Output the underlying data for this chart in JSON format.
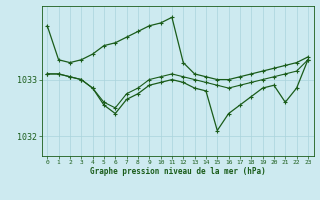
{
  "title": "Graphe pression niveau de la mer (hPa)",
  "background_color": "#cdeaf0",
  "grid_color": "#aad4dc",
  "line_color_dark": "#1a5c1a",
  "line_color_med": "#2d6e2d",
  "x_labels": [
    "0",
    "1",
    "2",
    "3",
    "4",
    "5",
    "6",
    "7",
    "8",
    "9",
    "10",
    "11",
    "12",
    "13",
    "14",
    "15",
    "16",
    "17",
    "18",
    "19",
    "20",
    "21",
    "22",
    "23"
  ],
  "yticks": [
    1032,
    1033
  ],
  "ylim": [
    1031.65,
    1034.3
  ],
  "xlim": [
    -0.5,
    23.5
  ],
  "series1_y": [
    1033.95,
    1033.35,
    1033.3,
    1033.35,
    1033.45,
    1033.6,
    1033.65,
    1033.75,
    1033.85,
    1033.95,
    1034.0,
    1034.1,
    1033.3,
    1033.1,
    1033.05,
    1033.0,
    1033.0,
    1033.05,
    1033.1,
    1033.15,
    1033.2,
    1033.25,
    1033.3,
    1033.4
  ],
  "series2_y": [
    1033.1,
    1033.1,
    1033.05,
    1033.0,
    1032.85,
    1032.6,
    1032.5,
    1032.75,
    1032.85,
    1033.0,
    1033.05,
    1033.1,
    1033.05,
    1033.0,
    1032.95,
    1032.9,
    1032.85,
    1032.9,
    1032.95,
    1033.0,
    1033.05,
    1033.1,
    1033.15,
    1033.35
  ],
  "series3_y": [
    1033.1,
    1033.1,
    1033.05,
    1033.0,
    1032.85,
    1032.55,
    1032.4,
    1032.65,
    1032.75,
    1032.9,
    1032.95,
    1033.0,
    1032.95,
    1032.85,
    1032.8,
    1032.1,
    1032.4,
    1032.55,
    1032.7,
    1032.85,
    1032.9,
    1032.6,
    1032.85,
    1033.35
  ]
}
